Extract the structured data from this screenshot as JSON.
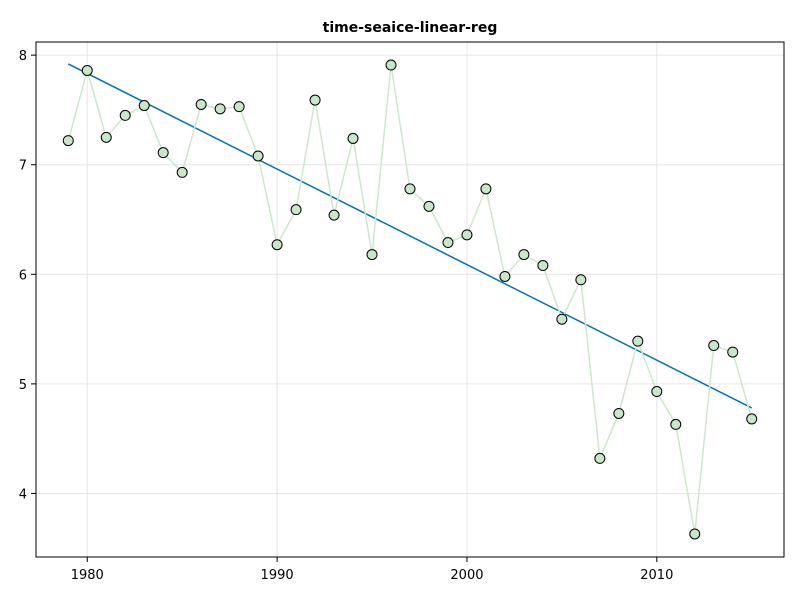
{
  "chart_data": {
    "type": "scatter",
    "title": "time-seaice-linear-reg",
    "xlabel": "",
    "ylabel": "",
    "xlim": [
      1977.3,
      2016.7
    ],
    "ylim": [
      3.42,
      8.12
    ],
    "xticks": [
      1980,
      1990,
      2000,
      2010
    ],
    "yticks": [
      4,
      5,
      6,
      7,
      8
    ],
    "grid": true,
    "series": [
      {
        "x": [
          1979,
          1980,
          1981,
          1982,
          1983,
          1984,
          1985,
          1986,
          1987,
          1988,
          1989,
          1990,
          1991,
          1992,
          1993,
          1994,
          1995,
          1996,
          1997,
          1998,
          1999,
          2000,
          2001,
          2002,
          2003,
          2004,
          2005,
          2006,
          2007,
          2008,
          2009,
          2010,
          2011,
          2012,
          2013,
          2014,
          2015
        ],
        "values": [
          7.22,
          7.86,
          7.25,
          7.45,
          7.54,
          7.11,
          6.93,
          7.55,
          7.51,
          7.53,
          7.08,
          6.27,
          6.59,
          7.59,
          6.54,
          7.24,
          6.18,
          7.91,
          6.78,
          6.62,
          6.29,
          6.36,
          6.78,
          5.98,
          6.18,
          6.08,
          5.59,
          5.95,
          4.32,
          4.73,
          5.39,
          4.93,
          4.63,
          3.63,
          5.35,
          5.29,
          4.68
        ]
      }
    ],
    "regression": {
      "x": [
        1979,
        2015
      ],
      "y": [
        7.92,
        4.78
      ]
    }
  },
  "colors": {
    "points_fill": "#c8e6c9",
    "connector": "#cce8cc",
    "regression": "#0072b2"
  }
}
